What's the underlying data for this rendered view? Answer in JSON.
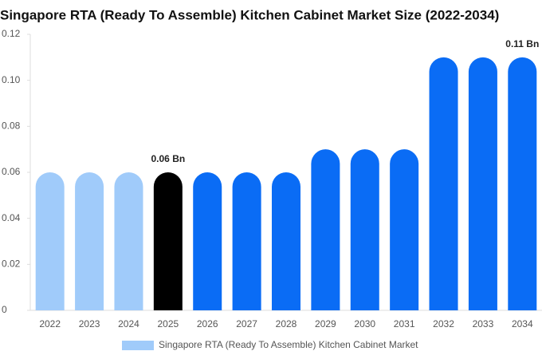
{
  "chart_data": {
    "type": "bar",
    "title": "Singapore RTA (Ready To Assemble) Kitchen Cabinet Market Size (2022-2034)",
    "categories": [
      "2022",
      "2023",
      "2024",
      "2025",
      "2026",
      "2027",
      "2028",
      "2029",
      "2030",
      "2031",
      "2032",
      "2033",
      "2034"
    ],
    "series": [
      {
        "name": "Singapore RTA (Ready To Assemble) Kitchen Cabinet Market",
        "color": "#a0cbfa",
        "values": [
          0.06,
          0.06,
          0.06,
          0.06,
          0.06,
          0.06,
          0.06,
          0.07,
          0.07,
          0.07,
          0.11,
          0.11,
          0.11
        ],
        "value_labels": [
          null,
          null,
          null,
          "0.06 Bn",
          null,
          null,
          null,
          null,
          null,
          null,
          null,
          null,
          "0.11 Bn"
        ],
        "colors": [
          "#a0cbfa",
          "#a0cbfa",
          "#a0cbfa",
          "#000000",
          "#0a6cf5",
          "#0a6cf5",
          "#0a6cf5",
          "#0a6cf5",
          "#0a6cf5",
          "#0a6cf5",
          "#0a6cf5",
          "#0a6cf5",
          "#0a6cf5"
        ]
      }
    ],
    "ylim": [
      0,
      0.12
    ],
    "yticks": [
      0,
      0.02,
      0.04,
      0.06,
      0.08,
      {
        "value": 0.1,
        "label": "0.10"
      },
      0.12
    ]
  }
}
